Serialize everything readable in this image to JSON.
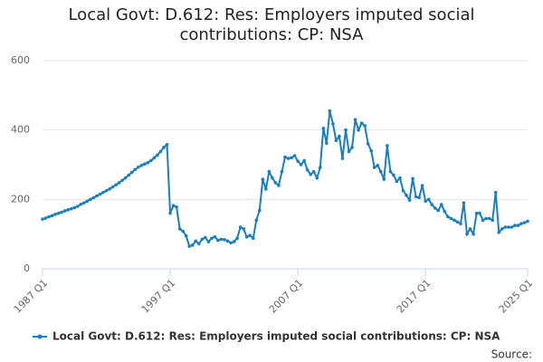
{
  "chart_data": {
    "type": "line",
    "title": "Local Govt: D.612: Res: Employers imputed social contributions: CP: NSA",
    "categories": [
      "1987 Q1",
      null,
      null,
      null,
      null,
      null,
      null,
      null,
      null,
      null,
      null,
      null,
      null,
      null,
      null,
      null,
      null,
      null,
      null,
      null,
      null,
      null,
      null,
      null,
      null,
      null,
      null,
      null,
      null,
      null,
      null,
      null,
      null,
      null,
      null,
      null,
      null,
      null,
      null,
      null,
      "1997 Q1",
      null,
      null,
      null,
      null,
      null,
      null,
      null,
      null,
      null,
      null,
      null,
      null,
      null,
      null,
      null,
      null,
      null,
      null,
      null,
      null,
      null,
      null,
      null,
      null,
      null,
      null,
      null,
      null,
      null,
      null,
      null,
      null,
      null,
      null,
      null,
      null,
      null,
      null,
      null,
      "2007 Q1",
      null,
      null,
      null,
      null,
      null,
      null,
      null,
      null,
      null,
      null,
      null,
      null,
      null,
      null,
      null,
      null,
      null,
      null,
      null,
      null,
      null,
      null,
      null,
      null,
      null,
      null,
      null,
      null,
      null,
      null,
      null,
      null,
      null,
      null,
      null,
      null,
      null,
      null,
      null,
      "2017 Q1",
      null,
      null,
      null,
      null,
      null,
      null,
      null,
      null,
      null,
      null,
      null,
      null,
      null,
      null,
      null,
      null,
      null,
      null,
      null,
      null,
      null,
      null,
      null,
      null,
      null,
      null,
      null,
      null,
      null,
      null,
      null,
      "2025 Q1"
    ],
    "series": [
      {
        "name": "Local Govt: D.612: Res: Employers imputed social contributions: CP: NSA",
        "color": "#1a7fbf",
        "values": [
          143,
          146,
          150,
          153,
          157,
          160,
          163,
          167,
          170,
          173,
          176,
          180,
          186,
          190,
          195,
          200,
          205,
          210,
          215,
          220,
          225,
          230,
          236,
          242,
          248,
          255,
          262,
          270,
          278,
          286,
          293,
          298,
          302,
          306,
          312,
          320,
          328,
          338,
          350,
          358,
          160,
          182,
          178,
          115,
          108,
          95,
          65,
          68,
          80,
          72,
          85,
          90,
          78,
          88,
          92,
          82,
          85,
          84,
          80,
          75,
          78,
          88,
          120,
          115,
          92,
          96,
          88,
          140,
          168,
          258,
          230,
          280,
          262,
          248,
          240,
          280,
          322,
          318,
          320,
          326,
          310,
          300,
          312,
          285,
          272,
          280,
          262,
          292,
          405,
          362,
          455,
          418,
          370,
          382,
          318,
          400,
          338,
          350,
          430,
          400,
          420,
          412,
          360,
          340,
          292,
          298,
          280,
          258,
          355,
          280,
          270,
          252,
          262,
          225,
          212,
          198,
          260,
          208,
          205,
          240,
          195,
          200,
          185,
          175,
          168,
          185,
          165,
          150,
          145,
          140,
          135,
          130,
          190,
          100,
          115,
          100,
          160,
          160,
          140,
          145,
          145,
          140,
          220,
          105,
          115,
          120,
          120,
          120,
          125,
          125,
          130,
          133,
          137
        ]
      }
    ],
    "ylim": [
      0,
      600
    ],
    "yticks": [
      0,
      200,
      400,
      600
    ],
    "grid": true,
    "source": "Source:"
  }
}
